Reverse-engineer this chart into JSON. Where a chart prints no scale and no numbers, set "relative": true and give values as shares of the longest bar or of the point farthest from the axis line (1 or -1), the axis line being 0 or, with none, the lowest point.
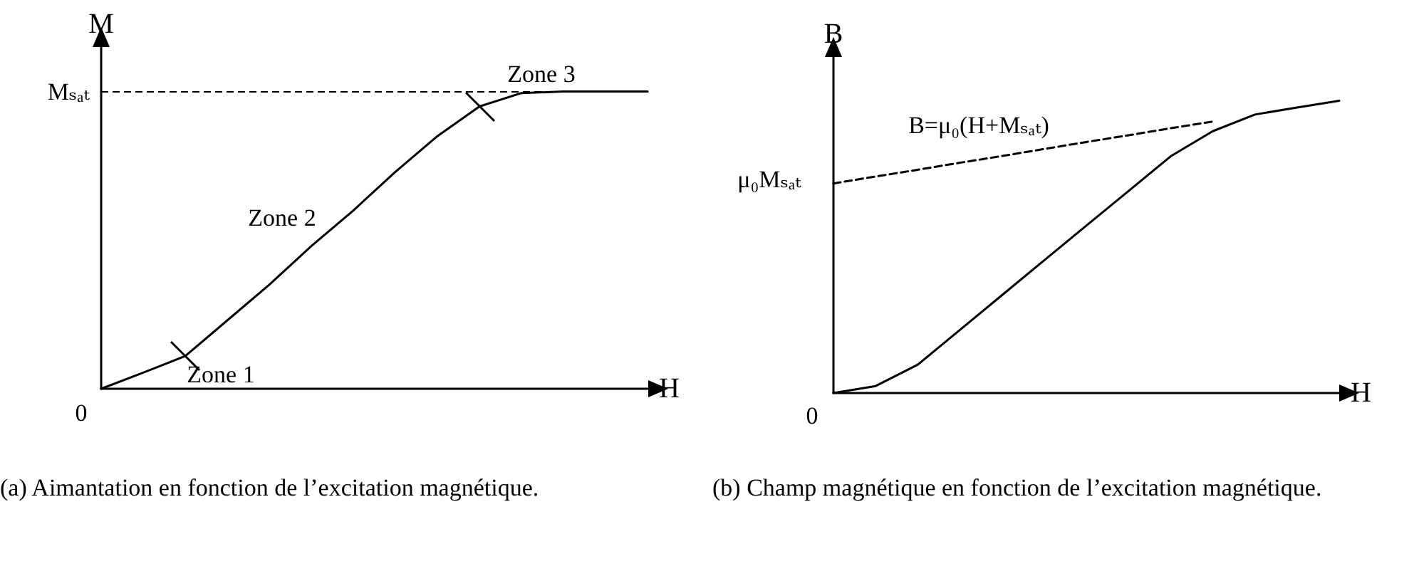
{
  "chart_data": [
    {
      "type": "line",
      "title": "(a) Aimantation en fonction de l’excitation magnétique.",
      "xlabel": "H",
      "ylabel": "M",
      "relative": true,
      "grid": false,
      "marker": "none",
      "categories": [
        null,
        null,
        null,
        null,
        null,
        null,
        null,
        null,
        null,
        null,
        null,
        null,
        null,
        null
      ],
      "series": [
        {
          "color": "#000000",
          "line_style": "solid",
          "values": [
            0,
            0.054,
            0.11,
            0.23,
            0.35,
            0.48,
            0.6,
            0.73,
            0.85,
            0.95,
            0.995,
            1,
            1,
            1
          ]
        }
      ],
      "ref_lines": [
        {
          "axis": "y",
          "value": 1,
          "label": "Mₛₐₜ",
          "color": "#000000",
          "line_style": "dashed"
        }
      ],
      "annotations": [
        "Zone 1",
        "Zone 2",
        "Zone 3",
        "0"
      ]
    },
    {
      "type": "line",
      "title": "(b) Champ magnétique en fonction de l’excitation magnétique.",
      "xlabel": "H",
      "ylabel": "B",
      "relative": true,
      "grid": false,
      "marker": "none",
      "categories": [
        null,
        null,
        null,
        null,
        null,
        null,
        null,
        null,
        null,
        null,
        null,
        null,
        null
      ],
      "series": [
        {
          "color": "#000000",
          "line_style": "solid",
          "values": [
            0,
            0.024,
            0.097,
            0.216,
            0.335,
            0.454,
            0.573,
            0.691,
            0.81,
            0.896,
            0.953,
            0.977,
            1
          ]
        },
        {
          "color": "#000000",
          "line_style": "dashed",
          "values": [
            0.717,
            0.741,
            0.764,
            0.788,
            0.811,
            0.835,
            0.859,
            0.882,
            0.906,
            0.929,
            null,
            null,
            null
          ]
        }
      ],
      "annotations": [
        "B=μ₀(H+Mₛₐₜ)",
        "0",
        "μ₀Mₛₐₜ"
      ]
    }
  ]
}
